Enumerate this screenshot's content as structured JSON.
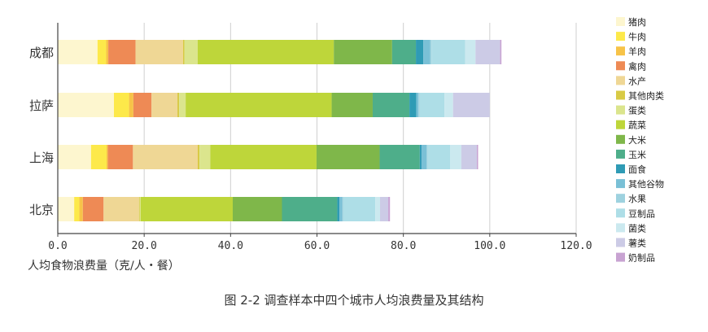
{
  "chart_data": {
    "type": "bar",
    "orientation": "horizontal",
    "stacked": true,
    "categories": [
      "成都",
      "拉萨",
      "上海",
      "北京"
    ],
    "xlabel": "人均食物浪费量（克/人・餐）",
    "xlim": [
      0,
      120
    ],
    "xticks": [
      "0.0",
      "20.0",
      "40.0",
      "60.0",
      "80.0",
      "100.0",
      "120.0"
    ],
    "grid": "vertical",
    "legend_position": "right",
    "series": [
      {
        "name": "猪肉",
        "color": "#fdf6cf",
        "values": [
          9.2,
          13.0,
          7.7,
          3.8
        ]
      },
      {
        "name": "牛肉",
        "color": "#fde94a",
        "values": [
          2.0,
          3.5,
          3.6,
          1.2
        ]
      },
      {
        "name": "羊肉",
        "color": "#f7c348",
        "values": [
          0.5,
          1.0,
          0.3,
          0.8
        ]
      },
      {
        "name": "禽肉",
        "color": "#ee8a55",
        "values": [
          6.3,
          4.2,
          5.8,
          4.8
        ]
      },
      {
        "name": "水产",
        "color": "#efd795",
        "values": [
          11.0,
          6.0,
          15.0,
          8.2
        ]
      },
      {
        "name": "其他肉类",
        "color": "#d8ca45",
        "values": [
          0.3,
          0.4,
          0.4,
          0.2
        ]
      },
      {
        "name": "蛋类",
        "color": "#dbe58d",
        "values": [
          3.1,
          1.5,
          2.5,
          0.2
        ]
      },
      {
        "name": "蔬菜",
        "color": "#bed63a",
        "values": [
          31.5,
          33.8,
          24.6,
          21.3
        ]
      },
      {
        "name": "大米",
        "color": "#7fb74a",
        "values": [
          13.5,
          9.5,
          14.6,
          11.4
        ]
      },
      {
        "name": "玉米",
        "color": "#4eae8a",
        "values": [
          5.5,
          8.5,
          9.3,
          12.8
        ]
      },
      {
        "name": "面食",
        "color": "#2f9bb5",
        "values": [
          1.7,
          1.6,
          0.4,
          0.5
        ]
      },
      {
        "name": "其他谷物",
        "color": "#7ac0d6",
        "values": [
          1.6,
          0.5,
          1.2,
          0.7
        ]
      },
      {
        "name": "水果",
        "color": "#9ed2df",
        "values": [
          0.3,
          0.3,
          0.2,
          0.2
        ]
      },
      {
        "name": "豆制品",
        "color": "#aedee7",
        "values": [
          7.8,
          5.7,
          5.2,
          7.4
        ]
      },
      {
        "name": "菌类",
        "color": "#cbe9ef",
        "values": [
          2.4,
          2.0,
          2.6,
          1.1
        ]
      },
      {
        "name": "薯类",
        "color": "#cccbe6",
        "values": [
          5.7,
          8.5,
          3.6,
          1.9
        ]
      },
      {
        "name": "奶制品",
        "color": "#c8a3d2",
        "values": [
          0.3,
          0.0,
          0.3,
          0.4
        ]
      }
    ]
  },
  "caption": "图 2-2 调查样本中四个城市人均浪费量及其结构"
}
